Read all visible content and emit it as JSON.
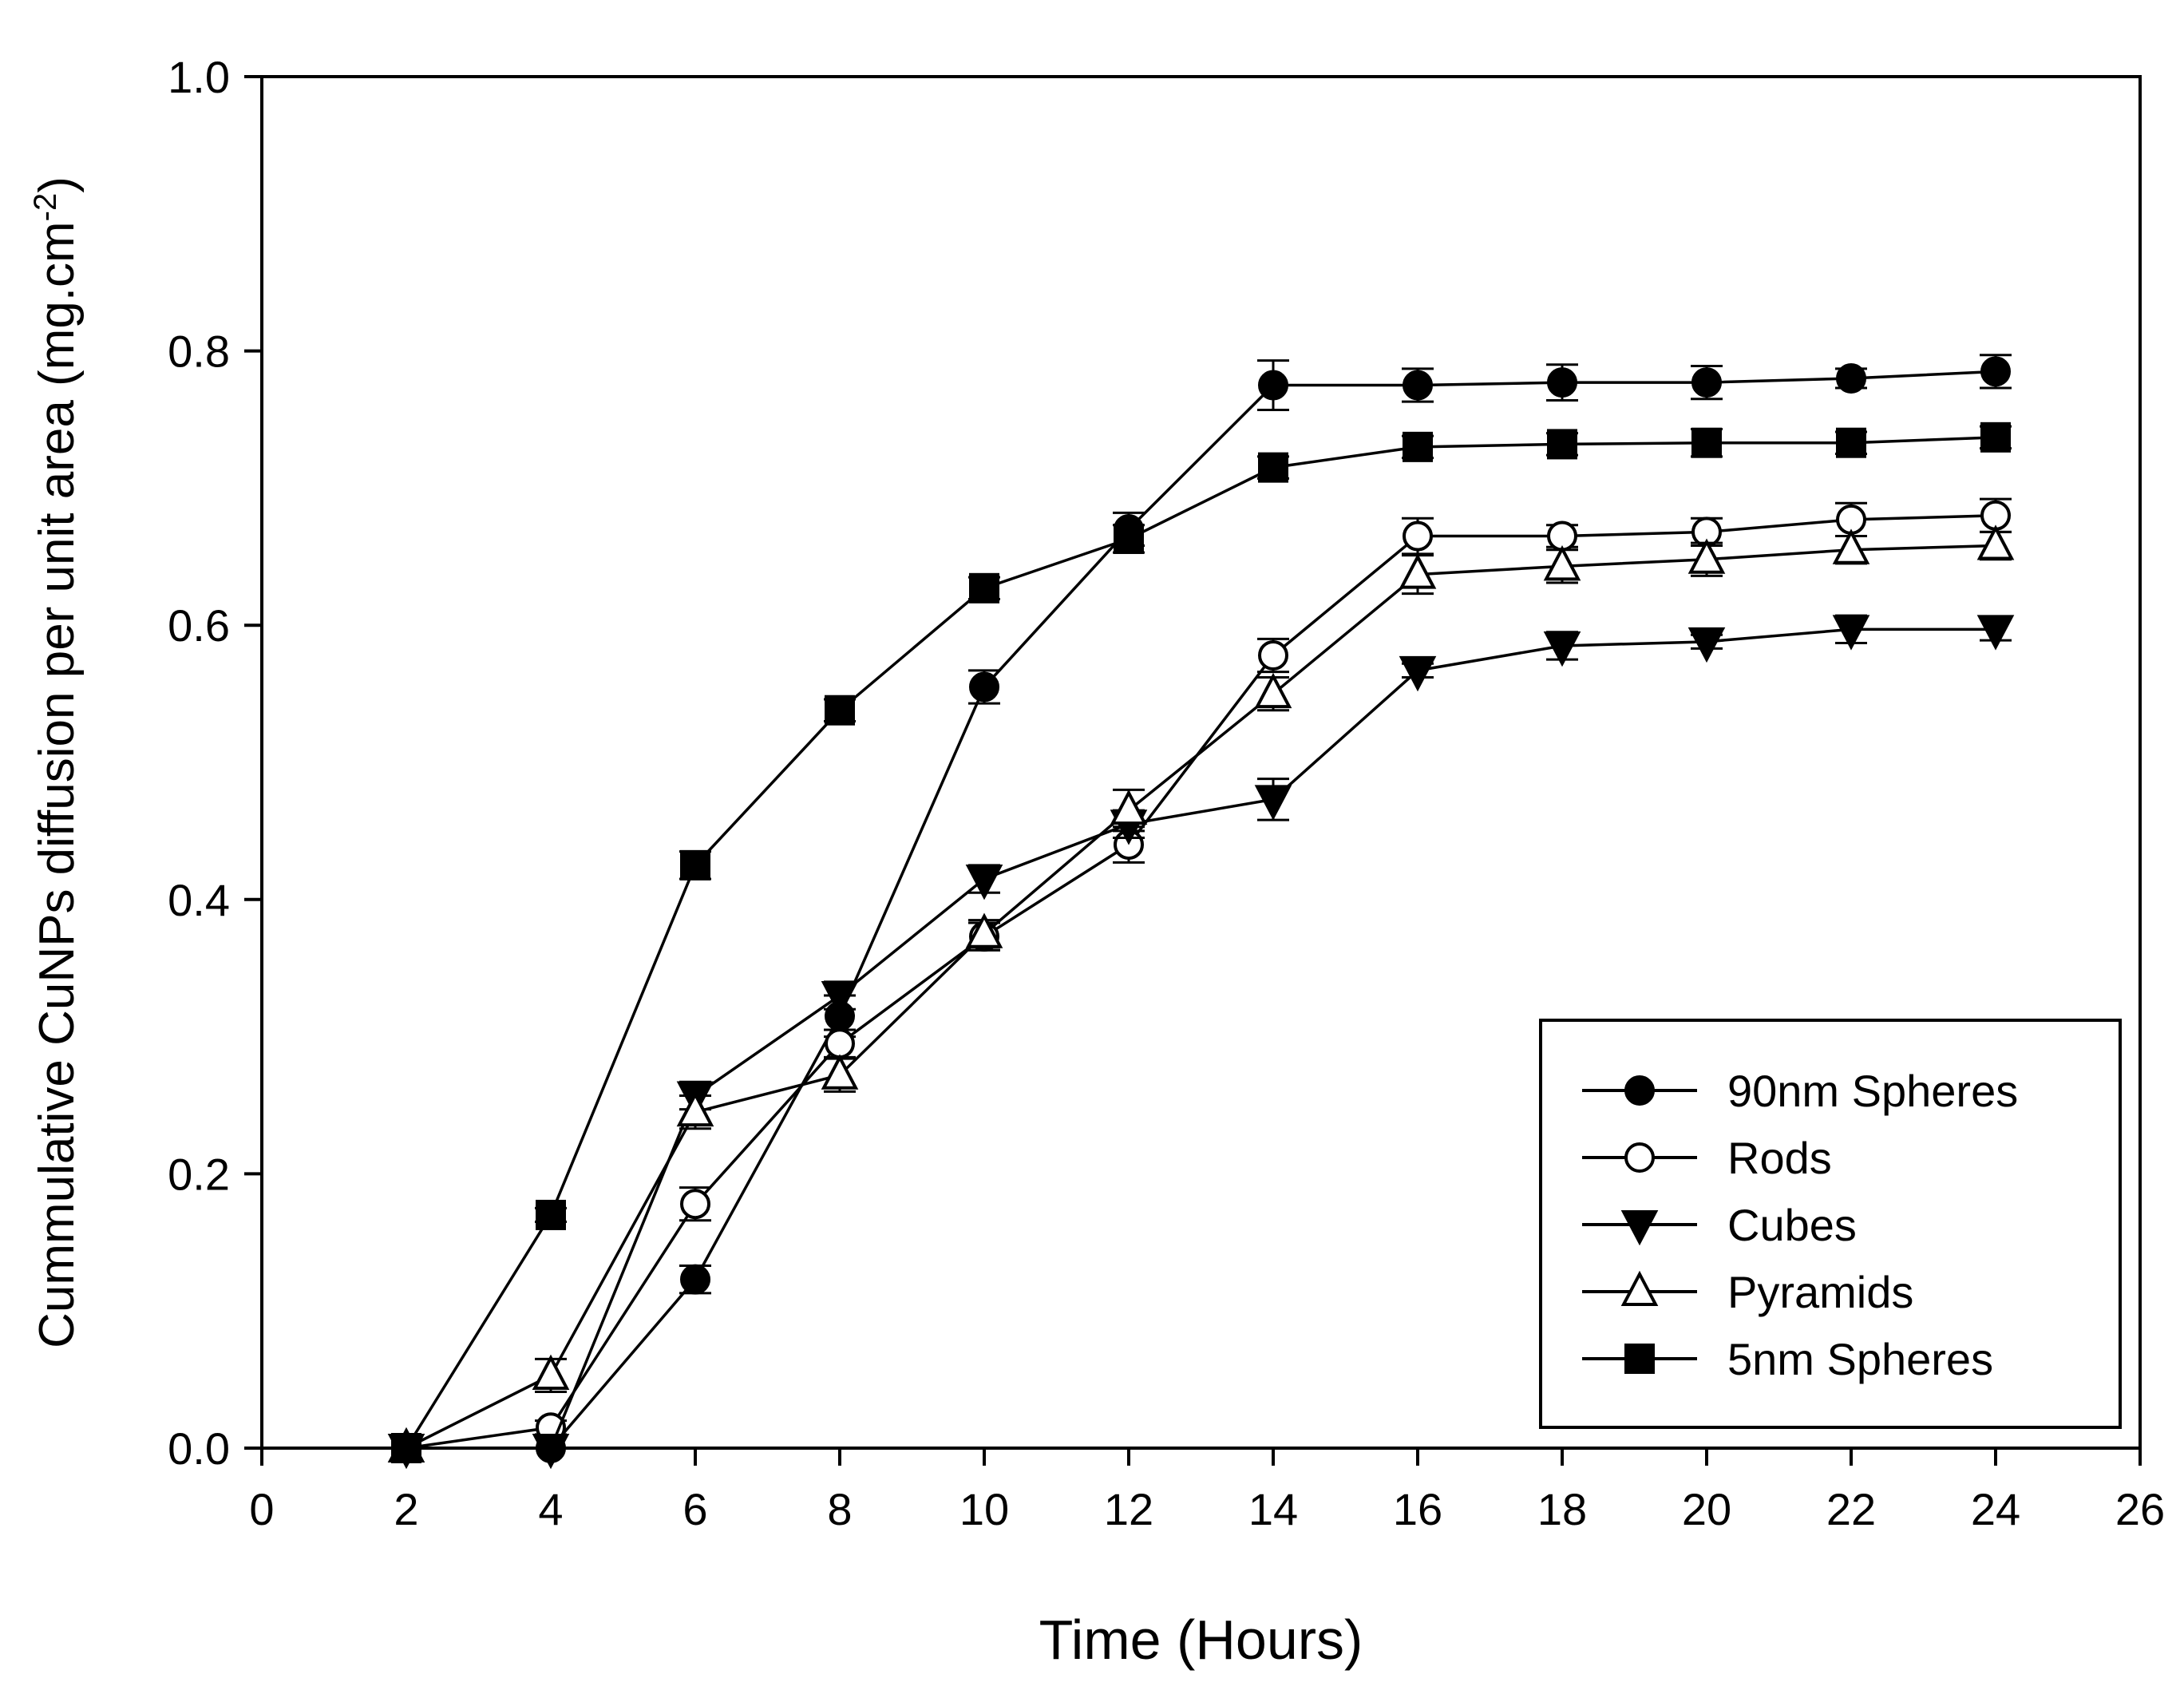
{
  "chart_data": {
    "type": "line",
    "title": "",
    "xlabel": "Time (Hours)",
    "ylabel_main": "Cummulative CuNPs diffusion per unit area (mg.cm",
    "ylabel_sup": "-2",
    "ylabel_close": ")",
    "xlim": [
      0,
      26
    ],
    "ylim": [
      0.0,
      1.0
    ],
    "x_ticks": [
      "0",
      "2",
      "4",
      "6",
      "8",
      "10",
      "12",
      "14",
      "16",
      "18",
      "20",
      "22",
      "24",
      "26"
    ],
    "y_ticks": [
      "0.0",
      "0.2",
      "0.4",
      "0.6",
      "0.8",
      "1.0"
    ],
    "x": [
      2,
      4,
      6,
      8,
      10,
      12,
      14,
      16,
      18,
      20,
      22,
      24
    ],
    "legend_position": "bottom-right",
    "grid": false,
    "series": [
      {
        "name": "90nm Spheres",
        "marker": "circle-filled",
        "values": [
          0.0,
          0.0,
          0.123,
          0.315,
          0.555,
          0.67,
          0.775,
          0.775,
          0.777,
          0.777,
          0.78,
          0.785
        ],
        "errors": [
          0.0,
          0.0,
          0.01,
          0.015,
          0.012,
          0.012,
          0.018,
          0.012,
          0.013,
          0.012,
          0.007,
          0.012
        ]
      },
      {
        "name": "Rods",
        "marker": "circle-open",
        "values": [
          0.0,
          0.015,
          0.178,
          0.295,
          0.373,
          0.44,
          0.578,
          0.665,
          0.665,
          0.668,
          0.677,
          0.68
        ],
        "errors": [
          0.0,
          0.005,
          0.012,
          0.01,
          0.01,
          0.013,
          0.012,
          0.013,
          0.008,
          0.01,
          0.012,
          0.012
        ]
      },
      {
        "name": "Cubes",
        "marker": "triangle-down-filled",
        "values": [
          0.0,
          0.0,
          0.257,
          0.33,
          0.415,
          0.455,
          0.473,
          0.567,
          0.585,
          0.588,
          0.597,
          0.597
        ],
        "errors": [
          0.0,
          0.0,
          0.01,
          0.01,
          0.01,
          0.01,
          0.015,
          0.005,
          0.01,
          0.005,
          0.01,
          0.008
        ]
      },
      {
        "name": "Pyramids",
        "marker": "triangle-up-open",
        "values": [
          0.0,
          0.053,
          0.245,
          0.272,
          0.375,
          0.465,
          0.55,
          0.637,
          0.643,
          0.648,
          0.655,
          0.658
        ],
        "errors": [
          0.0,
          0.012,
          0.012,
          0.012,
          0.01,
          0.015,
          0.012,
          0.014,
          0.012,
          0.012,
          0.01,
          0.01
        ]
      },
      {
        "name": "5nm Spheres",
        "marker": "square-filled",
        "values": [
          0.0,
          0.17,
          0.425,
          0.538,
          0.627,
          0.663,
          0.715,
          0.73,
          0.732,
          0.733,
          0.733,
          0.737
        ],
        "errors": [
          0.0,
          0.005,
          0.01,
          0.008,
          0.008,
          0.01,
          0.008,
          0.008,
          0.008,
          0.01,
          0.008,
          0.008
        ]
      }
    ]
  }
}
